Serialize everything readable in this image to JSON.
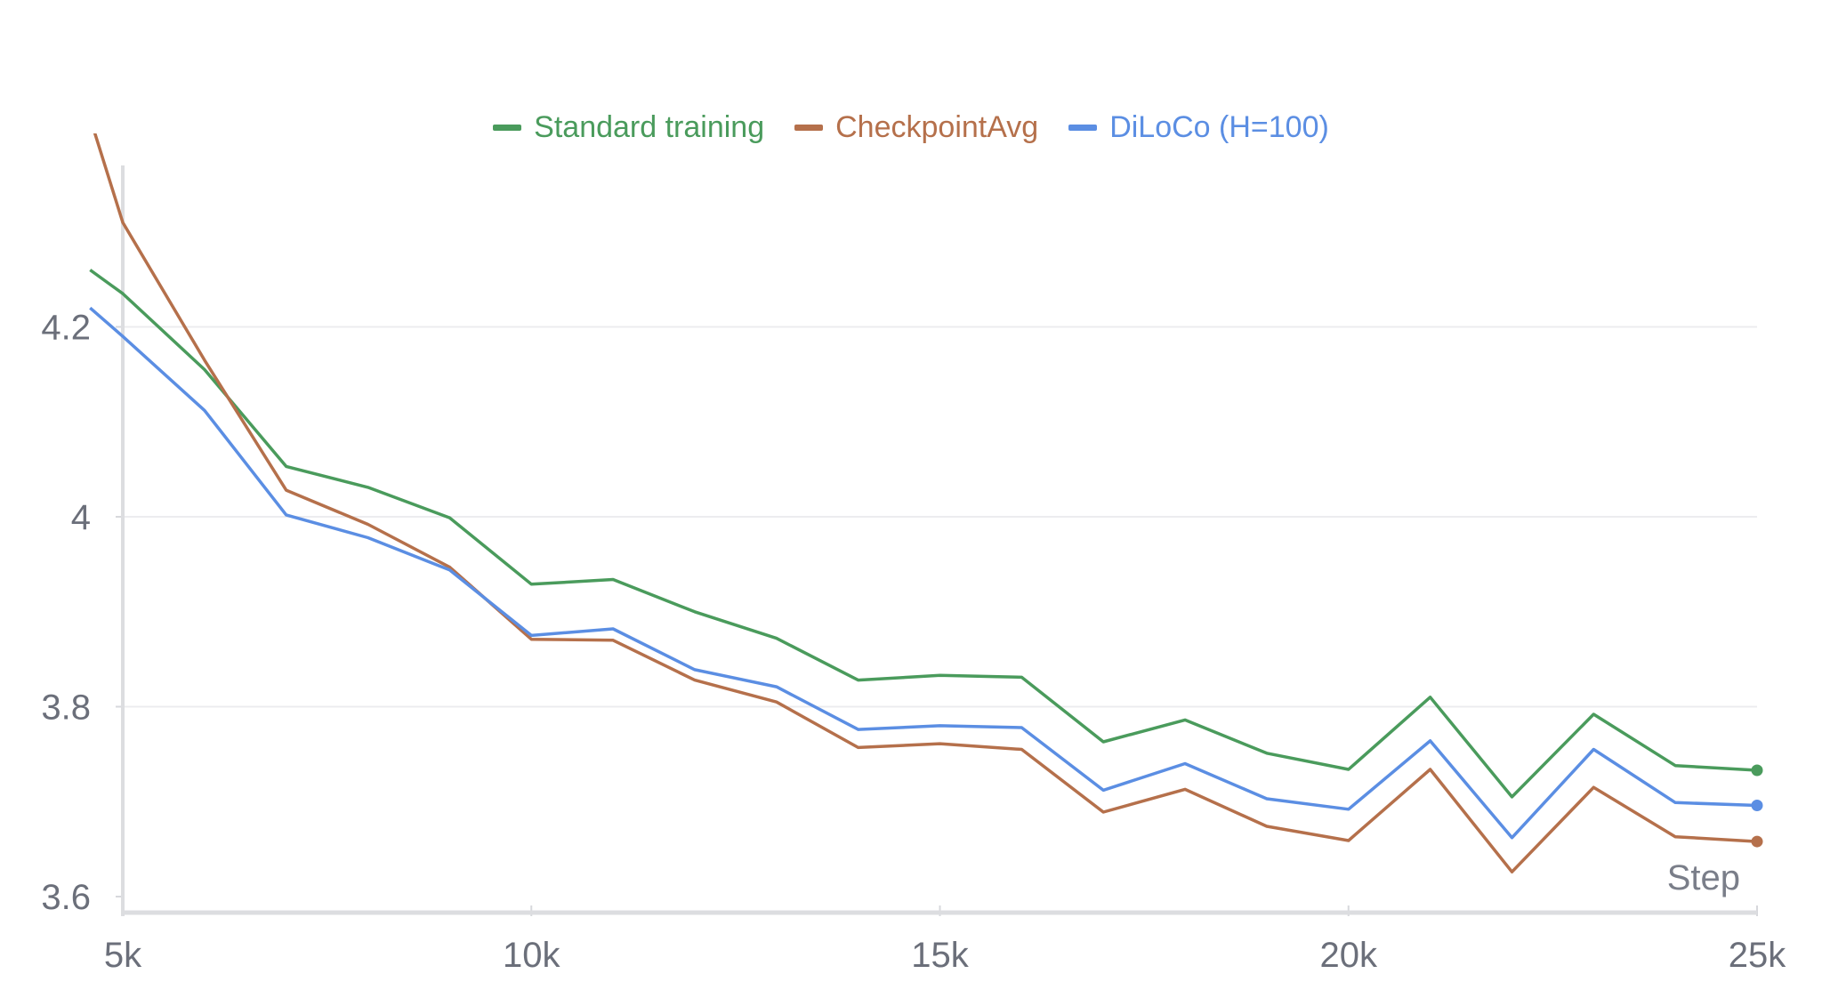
{
  "chart_data": {
    "type": "line",
    "title": "",
    "xlabel": "Step",
    "ylabel": "",
    "xlim": [
      5000,
      25000
    ],
    "ylim": [
      3.6,
      4.45
    ],
    "grid": true,
    "legend_position": "top-center",
    "x_ticks": [
      {
        "value": 5000,
        "label": "5k"
      },
      {
        "value": 10000,
        "label": "10k"
      },
      {
        "value": 15000,
        "label": "15k"
      },
      {
        "value": 20000,
        "label": "20k"
      },
      {
        "value": 25000,
        "label": "25k"
      }
    ],
    "y_ticks": [
      {
        "value": 3.6,
        "label": "3.6"
      },
      {
        "value": 3.8,
        "label": "3.8"
      },
      {
        "value": 4.0,
        "label": "4"
      },
      {
        "value": 4.2,
        "label": "4.2"
      }
    ],
    "x": [
      4600,
      5000,
      6000,
      7000,
      8000,
      9000,
      10000,
      11000,
      12000,
      13000,
      14000,
      15000,
      16000,
      17000,
      18000,
      19000,
      20000,
      21000,
      22000,
      23000,
      24000,
      25000
    ],
    "series": [
      {
        "name": "Standard training",
        "color": "#4a9b5c",
        "values": [
          4.26,
          4.235,
          4.155,
          4.053,
          4.031,
          3.999,
          3.929,
          3.934,
          3.9,
          3.872,
          3.828,
          3.833,
          3.831,
          3.763,
          3.786,
          3.751,
          3.734,
          3.81,
          3.705,
          3.792,
          3.738,
          3.733
        ]
      },
      {
        "name": "CheckpointAvg",
        "color": "#b5704b",
        "values": [
          4.42,
          4.31,
          4.165,
          4.028,
          3.992,
          3.947,
          3.871,
          3.87,
          3.828,
          3.805,
          3.757,
          3.761,
          3.755,
          3.689,
          3.713,
          3.674,
          3.659,
          3.734,
          3.626,
          3.715,
          3.663,
          3.658
        ]
      },
      {
        "name": "DiLoCo (H=100)",
        "color": "#5b8ee3",
        "values": [
          4.22,
          4.19,
          4.112,
          4.002,
          3.978,
          3.944,
          3.875,
          3.882,
          3.839,
          3.821,
          3.776,
          3.78,
          3.778,
          3.712,
          3.74,
          3.703,
          3.692,
          3.764,
          3.662,
          3.755,
          3.699,
          3.696
        ]
      }
    ]
  }
}
